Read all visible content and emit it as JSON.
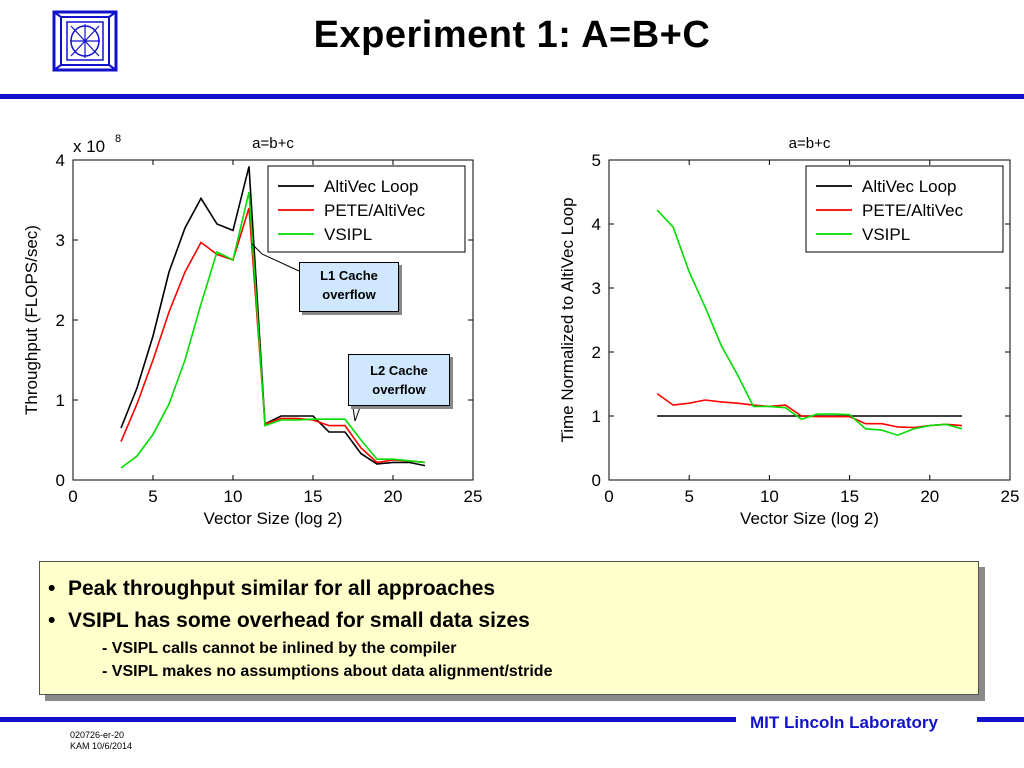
{
  "slide": {
    "title": "Experiment 1: A=B+C",
    "footer_lab": "MIT Lincoln Laboratory",
    "footer_code_1": "020726-er-20",
    "footer_code_2": "KAM 10/6/2014",
    "accent_color": "#1212cc"
  },
  "callouts": {
    "l1": [
      "L1 Cache",
      "overflow"
    ],
    "l2": [
      "L2 Cache",
      "overflow"
    ]
  },
  "notes": {
    "bullets": [
      "Peak throughput similar for all approaches",
      "VSIPL has some overhead for small data sizes"
    ],
    "subbullets": [
      "- VSIPL calls cannot be inlined by the compiler",
      "- VSIPL makes no assumptions about data alignment/stride"
    ]
  },
  "chart_data": [
    {
      "type": "line",
      "title": "a=b+c",
      "xlabel": "Vector Size (log 2)",
      "ylabel": "Throughput (FLOPS/sec)",
      "y_multiplier": "x 10",
      "y_multiplier_exp": "8",
      "xlim": [
        0,
        25
      ],
      "ylim": [
        0,
        4
      ],
      "xticks": [
        0,
        5,
        10,
        15,
        20,
        25
      ],
      "yticks": [
        0,
        1,
        2,
        3,
        4
      ],
      "grid": false,
      "legend_position": "top-right",
      "x": [
        3,
        4,
        5,
        6,
        7,
        8,
        9,
        10,
        11,
        12,
        13,
        14,
        15,
        16,
        17,
        18,
        19,
        20,
        21,
        22
      ],
      "series": [
        {
          "name": "AltiVec Loop",
          "color": "#000000",
          "values": [
            0.65,
            1.15,
            1.8,
            2.6,
            3.15,
            3.52,
            3.2,
            3.12,
            3.92,
            0.7,
            0.8,
            0.8,
            0.8,
            0.6,
            0.6,
            0.33,
            0.2,
            0.22,
            0.22,
            0.18
          ]
        },
        {
          "name": "PETE/AltiVec",
          "color": "#ff0000",
          "values": [
            0.48,
            0.95,
            1.5,
            2.1,
            2.6,
            2.97,
            2.82,
            2.75,
            3.4,
            0.7,
            0.77,
            0.77,
            0.75,
            0.68,
            0.68,
            0.4,
            0.22,
            0.25,
            0.24,
            0.22
          ]
        },
        {
          "name": "VSIPL",
          "color": "#00dd00",
          "values": [
            0.15,
            0.3,
            0.57,
            0.95,
            1.5,
            2.2,
            2.85,
            2.75,
            3.6,
            0.68,
            0.75,
            0.75,
            0.76,
            0.76,
            0.76,
            0.5,
            0.26,
            0.26,
            0.24,
            0.22
          ]
        }
      ]
    },
    {
      "type": "line",
      "title": "a=b+c",
      "xlabel": "Vector Size (log 2)",
      "ylabel": "Time Normalized to AltiVec Loop",
      "xlim": [
        0,
        25
      ],
      "ylim": [
        0,
        5
      ],
      "xticks": [
        0,
        5,
        10,
        15,
        20,
        25
      ],
      "yticks": [
        0,
        1,
        2,
        3,
        4,
        5
      ],
      "grid": false,
      "legend_position": "top-right",
      "x": [
        3,
        4,
        5,
        6,
        7,
        8,
        9,
        10,
        11,
        12,
        13,
        14,
        15,
        16,
        17,
        18,
        19,
        20,
        21,
        22
      ],
      "series": [
        {
          "name": "AltiVec Loop",
          "color": "#000000",
          "values": [
            1,
            1,
            1,
            1,
            1,
            1,
            1,
            1,
            1,
            1,
            1,
            1,
            1,
            1,
            1,
            1,
            1,
            1,
            1,
            1
          ]
        },
        {
          "name": "PETE/AltiVec",
          "color": "#ff0000",
          "values": [
            1.35,
            1.17,
            1.2,
            1.25,
            1.22,
            1.2,
            1.17,
            1.15,
            1.17,
            1.0,
            0.99,
            0.99,
            0.99,
            0.88,
            0.88,
            0.83,
            0.82,
            0.85,
            0.87,
            0.85
          ]
        },
        {
          "name": "VSIPL",
          "color": "#00dd00",
          "values": [
            4.22,
            3.95,
            3.25,
            2.7,
            2.1,
            1.65,
            1.15,
            1.15,
            1.13,
            0.95,
            1.03,
            1.03,
            1.02,
            0.8,
            0.78,
            0.7,
            0.8,
            0.85,
            0.87,
            0.8
          ]
        }
      ]
    }
  ]
}
